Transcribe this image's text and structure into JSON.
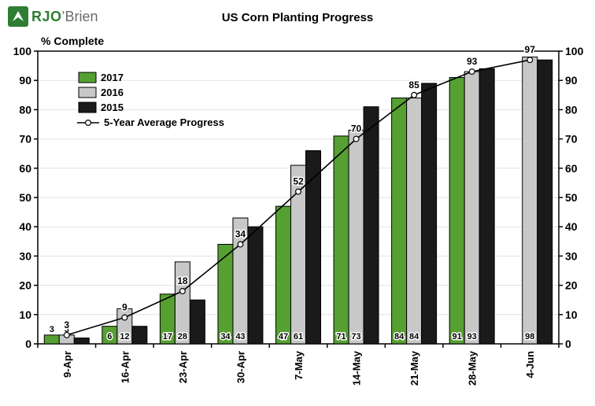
{
  "header": {
    "logo": {
      "text_primary": "RJO",
      "text_secondary": "’Brien"
    },
    "title": "US Corn Planting Progress"
  },
  "chart_data": {
    "type": "bar",
    "title": "US Corn Planting Progress",
    "ylabel": "% Complete",
    "xlabel": "",
    "ylim": [
      0,
      100
    ],
    "ytick_step": 10,
    "grid": true,
    "legend_position": "top-left",
    "categories": [
      "9-Apr",
      "16-Apr",
      "23-Apr",
      "30-Apr",
      "7-May",
      "14-May",
      "21-May",
      "28-May",
      "4-Jun"
    ],
    "series": [
      {
        "name": "2017",
        "type": "bar",
        "color": "#56A032",
        "show_labels": true,
        "values": [
          3,
          6,
          17,
          34,
          47,
          71,
          84,
          91,
          null
        ]
      },
      {
        "name": "2016",
        "type": "bar",
        "color": "#C8C8C8",
        "show_labels": true,
        "values": [
          3,
          12,
          28,
          43,
          61,
          73,
          84,
          93,
          98
        ]
      },
      {
        "name": "2015",
        "type": "bar",
        "color": "#1A1A1A",
        "show_labels": false,
        "values": [
          2,
          6,
          15,
          40,
          66,
          81,
          89,
          94,
          97
        ]
      },
      {
        "name": "5-Year Average Progress",
        "type": "line",
        "color": "#000000",
        "show_labels": true,
        "values": [
          3,
          9,
          18,
          34,
          52,
          70,
          85,
          93,
          97
        ]
      }
    ]
  }
}
